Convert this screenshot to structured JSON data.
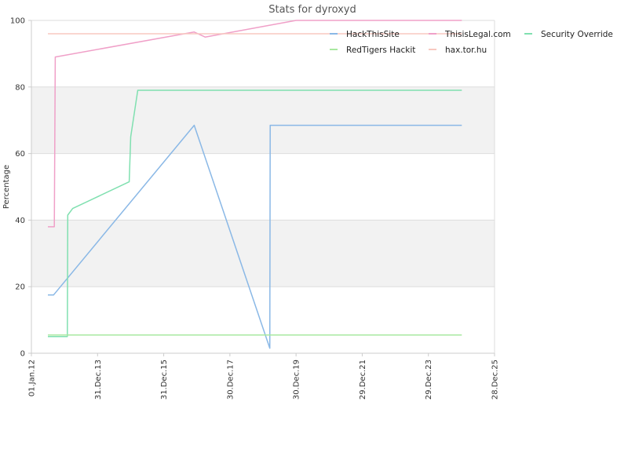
{
  "chart_data": {
    "type": "line",
    "title": "Stats for dyroxyd",
    "xlabel": "",
    "ylabel": "Percentage",
    "ylim": [
      0,
      100
    ],
    "y_ticks": [
      0,
      20,
      40,
      60,
      80,
      100
    ],
    "xlim": [
      "2012-01-01",
      "2025-12-28"
    ],
    "x_ticks": [
      {
        "date": "2012-01-01",
        "label": "01.Jan.12"
      },
      {
        "date": "2013-12-31",
        "label": "31.Dec.13"
      },
      {
        "date": "2015-12-31",
        "label": "31.Dec.15"
      },
      {
        "date": "2017-12-30",
        "label": "30.Dec.17"
      },
      {
        "date": "2019-12-30",
        "label": "30.Dec.19"
      },
      {
        "date": "2021-12-29",
        "label": "29.Dec.21"
      },
      {
        "date": "2023-12-29",
        "label": "29.Dec.23"
      },
      {
        "date": "2025-12-28",
        "label": "28.Dec.25"
      }
    ],
    "grid": true,
    "band_colors": [
      "#ffffff",
      "#f2f2f2"
    ],
    "legend_position": "top-right",
    "series": [
      {
        "name": "HackThisSite",
        "color": "#8ab8e6",
        "points": [
          [
            "2012-07-01",
            17.5
          ],
          [
            "2012-09-01",
            17.5
          ],
          [
            "2016-12-01",
            68.5
          ],
          [
            "2019-03-15",
            1.5
          ],
          [
            "2019-03-20",
            68.5
          ],
          [
            "2025-01-01",
            68.5
          ]
        ]
      },
      {
        "name": "ThisisLegal.com",
        "color": "#f0a0c8",
        "points": [
          [
            "2012-07-01",
            38
          ],
          [
            "2012-09-10",
            38
          ],
          [
            "2012-09-20",
            89
          ],
          [
            "2016-12-01",
            96.5
          ],
          [
            "2017-04-01",
            95
          ],
          [
            "2019-12-30",
            100
          ],
          [
            "2025-01-01",
            100
          ]
        ]
      },
      {
        "name": "Security Override",
        "color": "#80e0b0",
        "points": [
          [
            "2012-07-01",
            5
          ],
          [
            "2013-02-01",
            5
          ],
          [
            "2013-02-05",
            41.5
          ],
          [
            "2013-04-01",
            43.5
          ],
          [
            "2014-12-15",
            51.5
          ],
          [
            "2015-01-01",
            65
          ],
          [
            "2015-03-20",
            79
          ],
          [
            "2025-01-01",
            79
          ]
        ]
      },
      {
        "name": "RedTigers Hackit",
        "color": "#a8e8a0",
        "points": [
          [
            "2012-07-01",
            5.5
          ],
          [
            "2025-01-01",
            5.5
          ]
        ]
      },
      {
        "name": "hax.tor.hu",
        "color": "#f8c8c0",
        "points": [
          [
            "2012-07-01",
            96
          ],
          [
            "2025-01-01",
            96
          ]
        ]
      }
    ]
  }
}
